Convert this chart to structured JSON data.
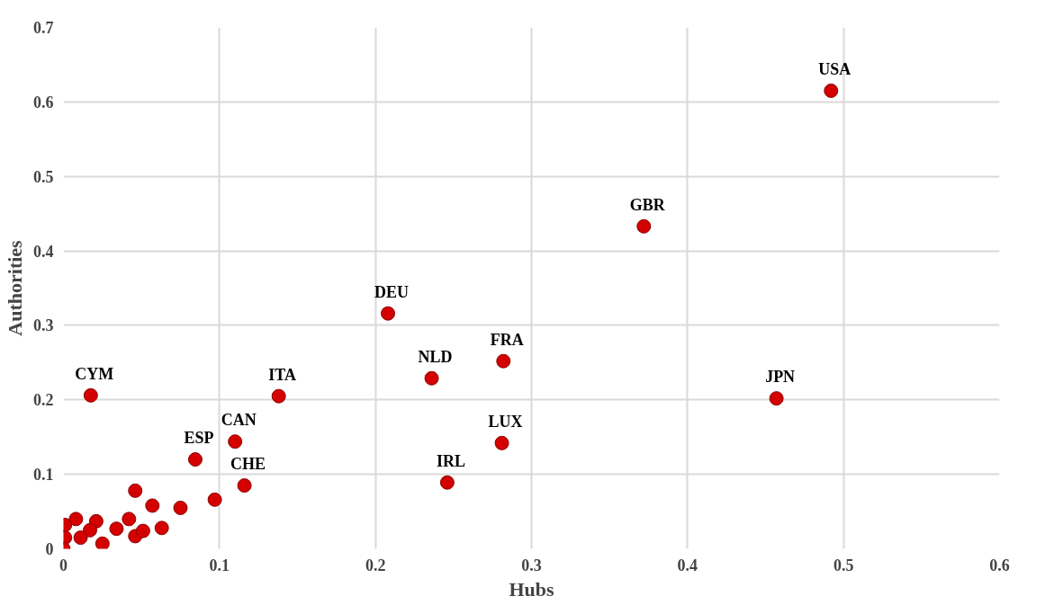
{
  "chart_data": {
    "type": "scatter",
    "xlabel": "Hubs",
    "ylabel": "Authorities",
    "xlim": [
      0,
      0.6
    ],
    "ylim": [
      0,
      0.7
    ],
    "xticks": [
      0,
      0.1,
      0.2,
      0.3,
      0.4,
      0.5,
      0.6
    ],
    "yticks": [
      0,
      0.1,
      0.2,
      0.3,
      0.4,
      0.5,
      0.6,
      0.7
    ],
    "grid": true,
    "marker": "circle",
    "series": [
      {
        "color": "#d40000",
        "x": [
          0.0175,
          0.138,
          0.0845,
          0.11,
          0.116,
          0.208,
          0.236,
          0.282,
          0.246,
          0.281,
          0.457,
          0.372,
          0.492,
          0.046,
          0.057,
          0.075,
          0.097,
          0.042,
          0.034,
          0.046,
          0.051,
          0.063,
          0.025,
          0.021,
          0.017,
          0.008,
          0.011,
          0.001,
          0.001,
          0.0
        ],
        "values": [
          0.206,
          0.205,
          0.12,
          0.144,
          0.085,
          0.316,
          0.229,
          0.252,
          0.089,
          0.142,
          0.202,
          0.433,
          0.615,
          0.078,
          0.058,
          0.055,
          0.066,
          0.04,
          0.027,
          0.017,
          0.024,
          0.028,
          0.007,
          0.037,
          0.025,
          0.04,
          0.015,
          0.032,
          0.015,
          0.0
        ]
      }
    ],
    "annotations": [
      {
        "text": "CYM",
        "x": 0.0175,
        "y": 0.206
      },
      {
        "text": "ITA",
        "x": 0.138,
        "y": 0.205
      },
      {
        "text": "ESP",
        "x": 0.0845,
        "y": 0.12
      },
      {
        "text": "CAN",
        "x": 0.11,
        "y": 0.144
      },
      {
        "text": "CHE",
        "x": 0.116,
        "y": 0.085
      },
      {
        "text": "DEU",
        "x": 0.208,
        "y": 0.316
      },
      {
        "text": "NLD",
        "x": 0.236,
        "y": 0.229
      },
      {
        "text": "FRA",
        "x": 0.282,
        "y": 0.252
      },
      {
        "text": "IRL",
        "x": 0.246,
        "y": 0.089
      },
      {
        "text": "LUX",
        "x": 0.281,
        "y": 0.142
      },
      {
        "text": "JPN",
        "x": 0.457,
        "y": 0.202
      },
      {
        "text": "GBR",
        "x": 0.372,
        "y": 0.433
      },
      {
        "text": "USA",
        "x": 0.492,
        "y": 0.615
      }
    ]
  }
}
